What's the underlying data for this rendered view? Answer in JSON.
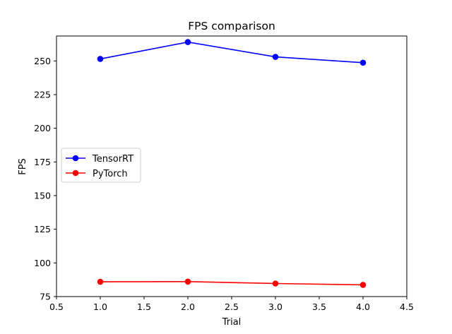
{
  "chart_data": {
    "type": "line",
    "title": "FPS comparison",
    "xlabel": "Trial",
    "ylabel": "FPS",
    "xlim": [
      0.5,
      4.5
    ],
    "ylim": [
      75,
      268.5
    ],
    "xticks": [
      0.5,
      1.0,
      1.5,
      2.0,
      2.5,
      3.0,
      3.5,
      4.0,
      4.5
    ],
    "xtick_labels": [
      "0.5",
      "1.0",
      "1.5",
      "2.0",
      "2.5",
      "3.0",
      "3.5",
      "4.0",
      "4.5"
    ],
    "yticks": [
      75,
      100,
      125,
      150,
      175,
      200,
      225,
      250
    ],
    "ytick_labels": [
      "75",
      "100",
      "125",
      "150",
      "175",
      "200",
      "225",
      "250"
    ],
    "grid": false,
    "legend_position": "center-left",
    "x": [
      1,
      2,
      3,
      4
    ],
    "series": [
      {
        "name": "TensorRT",
        "color": "#0000ff",
        "marker": "circle",
        "values": [
          251.5,
          264.0,
          253.0,
          248.7
        ]
      },
      {
        "name": "PyTorch",
        "color": "#ff0000",
        "marker": "circle",
        "values": [
          86.0,
          86.1,
          84.7,
          83.7
        ]
      }
    ]
  }
}
